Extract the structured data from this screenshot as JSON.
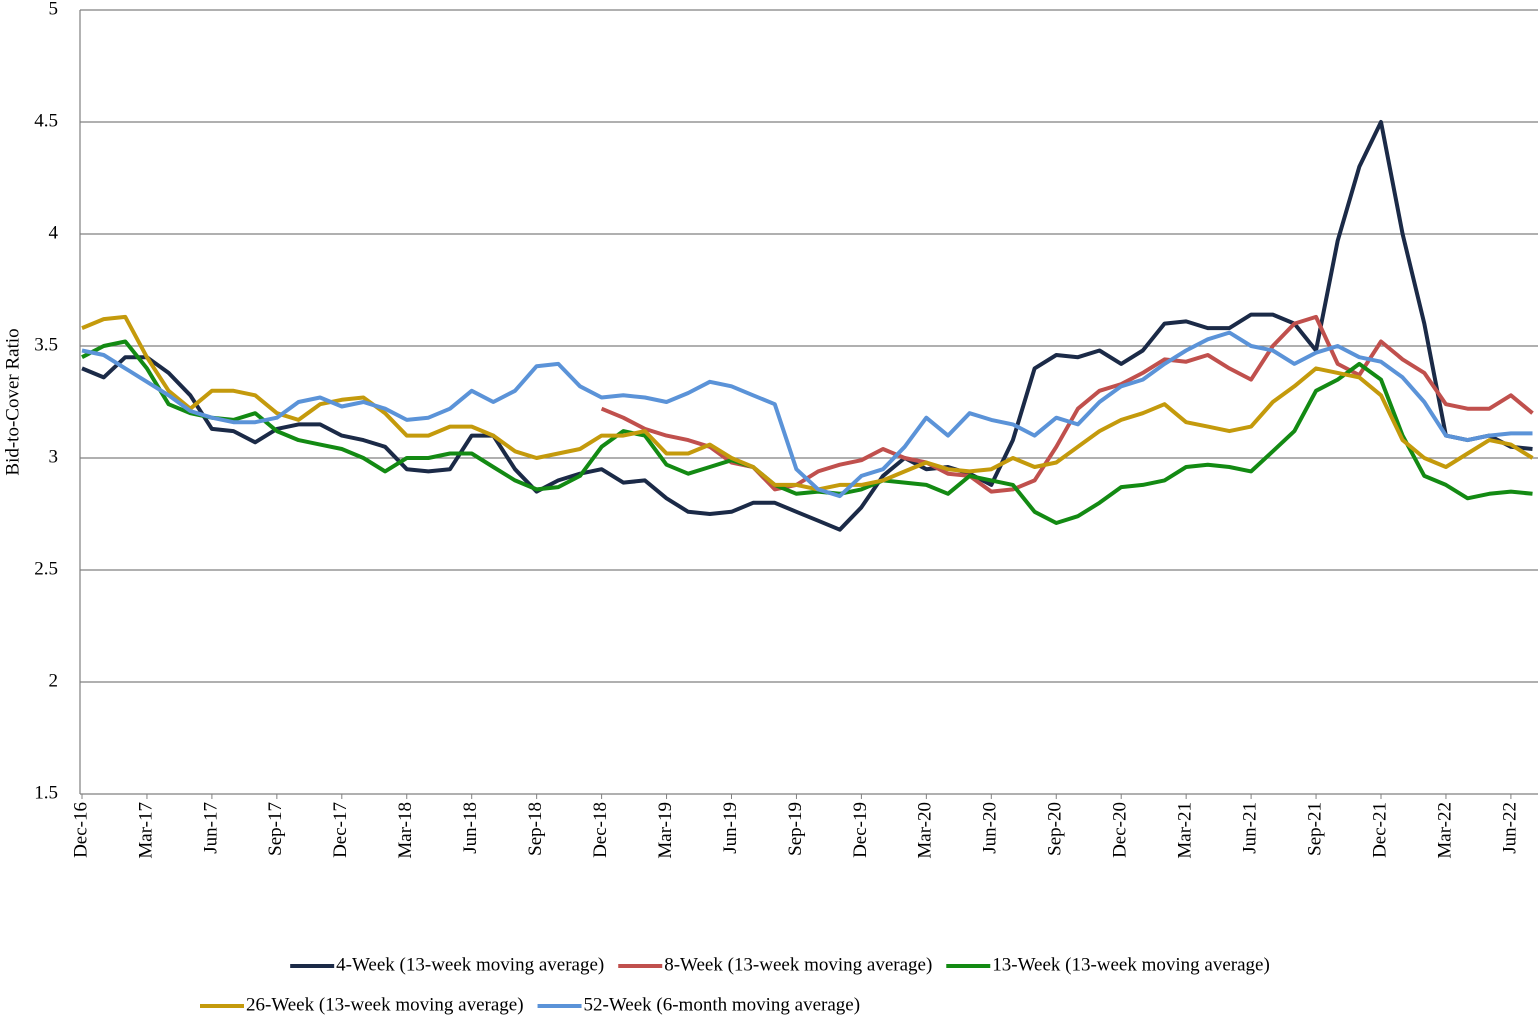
{
  "chart_data": {
    "type": "line",
    "y_label": "Bid-to-Cover Ratio",
    "categories": [
      "Dec-16",
      null,
      null,
      "Mar-17",
      null,
      null,
      "Jun-17",
      null,
      null,
      "Sep-17",
      null,
      null,
      "Dec-17",
      null,
      null,
      "Mar-18",
      null,
      null,
      "Jun-18",
      null,
      null,
      "Sep-18",
      null,
      null,
      "Dec-18",
      null,
      null,
      "Mar-19",
      null,
      null,
      "Jun-19",
      null,
      null,
      "Sep-19",
      null,
      null,
      "Dec-19",
      null,
      null,
      "Mar-20",
      null,
      null,
      "Jun-20",
      null,
      null,
      "Sep-20",
      null,
      null,
      "Dec-20",
      null,
      null,
      "Mar-21",
      null,
      null,
      "Jun-21",
      null,
      null,
      "Sep-21",
      null,
      null,
      "Dec-21",
      null,
      null,
      "Mar-22",
      null,
      null,
      "Jun-22",
      null
    ],
    "series": [
      {
        "name": "4-Week (13-week moving average)",
        "color": "#1b2a47",
        "values": [
          3.4,
          3.36,
          3.45,
          3.45,
          3.38,
          3.28,
          3.13,
          3.12,
          3.07,
          3.13,
          3.15,
          3.15,
          3.1,
          3.08,
          3.05,
          2.95,
          2.94,
          2.95,
          3.1,
          3.1,
          2.95,
          2.85,
          2.9,
          2.93,
          2.95,
          2.89,
          2.9,
          2.82,
          2.76,
          2.75,
          2.76,
          2.8,
          2.8,
          2.76,
          2.72,
          2.68,
          2.78,
          2.92,
          3.0,
          2.95,
          2.96,
          2.93,
          2.88,
          3.08,
          3.4,
          3.46,
          3.45,
          3.48,
          3.42,
          3.48,
          3.6,
          3.61,
          3.58,
          3.58,
          3.64,
          3.64,
          3.6,
          3.48,
          3.97,
          4.3,
          4.5,
          4.0,
          3.6,
          3.1,
          3.08,
          3.1,
          3.05,
          3.04
        ]
      },
      {
        "name": "8-Week (13-week moving average)",
        "color": "#c0504d",
        "values": [
          null,
          null,
          null,
          null,
          null,
          null,
          null,
          null,
          null,
          null,
          null,
          null,
          null,
          null,
          null,
          null,
          null,
          null,
          null,
          null,
          null,
          null,
          null,
          null,
          3.22,
          3.18,
          3.13,
          3.1,
          3.08,
          3.05,
          2.98,
          2.96,
          2.86,
          2.88,
          2.94,
          2.97,
          2.99,
          3.04,
          3.0,
          2.98,
          2.93,
          2.92,
          2.85,
          2.86,
          2.9,
          3.05,
          3.22,
          3.3,
          3.33,
          3.38,
          3.44,
          3.43,
          3.46,
          3.4,
          3.35,
          3.5,
          3.6,
          3.63,
          3.42,
          3.37,
          3.52,
          3.44,
          3.38,
          3.24,
          3.22,
          3.22,
          3.28,
          3.2
        ]
      },
      {
        "name": "13-Week (13-week moving average)",
        "color": "#138a13",
        "values": [
          3.45,
          3.5,
          3.52,
          3.4,
          3.24,
          3.2,
          3.18,
          3.17,
          3.2,
          3.12,
          3.08,
          3.06,
          3.04,
          3.0,
          2.94,
          3.0,
          3.0,
          3.02,
          3.02,
          2.96,
          2.9,
          2.86,
          2.87,
          2.92,
          3.05,
          3.12,
          3.1,
          2.97,
          2.93,
          2.96,
          2.99,
          2.96,
          2.88,
          2.84,
          2.85,
          2.84,
          2.86,
          2.9,
          2.89,
          2.88,
          2.84,
          2.92,
          2.9,
          2.88,
          2.76,
          2.71,
          2.74,
          2.8,
          2.87,
          2.88,
          2.9,
          2.96,
          2.97,
          2.96,
          2.94,
          3.03,
          3.12,
          3.3,
          3.35,
          3.42,
          3.35,
          3.1,
          2.92,
          2.88,
          2.82,
          2.84,
          2.85,
          2.84
        ]
      },
      {
        "name": "26-Week (13-week moving average)",
        "color": "#c49a0c",
        "values": [
          3.58,
          3.62,
          3.63,
          3.45,
          3.3,
          3.22,
          3.3,
          3.3,
          3.28,
          3.2,
          3.17,
          3.24,
          3.26,
          3.27,
          3.2,
          3.1,
          3.1,
          3.14,
          3.14,
          3.1,
          3.03,
          3.0,
          3.02,
          3.04,
          3.1,
          3.1,
          3.12,
          3.02,
          3.02,
          3.06,
          3.0,
          2.96,
          2.88,
          2.88,
          2.86,
          2.88,
          2.88,
          2.9,
          2.94,
          2.98,
          2.95,
          2.94,
          2.95,
          3.0,
          2.96,
          2.98,
          3.05,
          3.12,
          3.17,
          3.2,
          3.24,
          3.16,
          3.14,
          3.12,
          3.14,
          3.25,
          3.32,
          3.4,
          3.38,
          3.36,
          3.28,
          3.08,
          3.0,
          2.96,
          3.02,
          3.08,
          3.06,
          3.0
        ]
      },
      {
        "name": "52-Week (6-month moving average)",
        "color": "#5b93d8",
        "values": [
          3.48,
          3.46,
          3.4,
          3.34,
          3.28,
          3.21,
          3.18,
          3.16,
          3.16,
          3.18,
          3.25,
          3.27,
          3.23,
          3.25,
          3.22,
          3.17,
          3.18,
          3.22,
          3.3,
          3.25,
          3.3,
          3.41,
          3.42,
          3.32,
          3.27,
          3.28,
          3.27,
          3.25,
          3.29,
          3.34,
          3.32,
          3.28,
          3.24,
          2.95,
          2.86,
          2.83,
          2.92,
          2.95,
          3.05,
          3.18,
          3.1,
          3.2,
          3.17,
          3.15,
          3.1,
          3.18,
          3.15,
          3.25,
          3.32,
          3.35,
          3.42,
          3.48,
          3.53,
          3.56,
          3.5,
          3.48,
          3.42,
          3.47,
          3.5,
          3.45,
          3.43,
          3.36,
          3.25,
          3.1,
          3.08,
          3.1,
          3.11,
          3.11
        ]
      }
    ],
    "ylim": [
      1.5,
      5
    ],
    "yticks": [
      1.5,
      2,
      2.5,
      3,
      3.5,
      4,
      4.5,
      5
    ],
    "grid": true
  }
}
